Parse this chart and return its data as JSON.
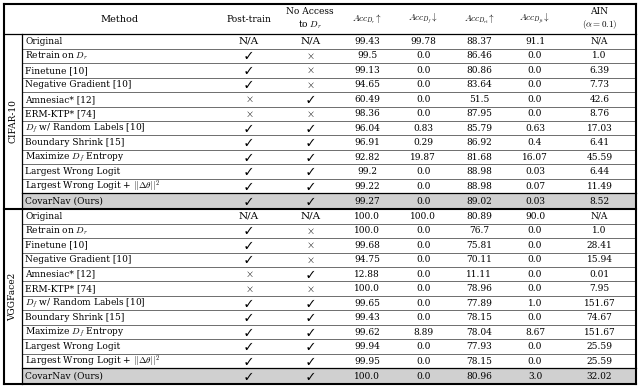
{
  "col_headers_line1": [
    "Method",
    "Post-train",
    "No Access",
    "$Acc_{D_r}\\!\\uparrow$",
    "$Acc_{D_f}\\!\\downarrow$",
    "$Acc_{D_{rt}}\\!\\uparrow$",
    "$Acc_{D_{ft}}\\!\\downarrow$",
    "AIN"
  ],
  "col_headers_line2": [
    "",
    "",
    "to $D_r$",
    "",
    "",
    "",
    "",
    "$(\\alpha=0.1)$"
  ],
  "cifar_rows": [
    [
      "Original",
      "N/A",
      "N/A",
      "99.43",
      "99.78",
      "88.37",
      "91.1",
      "N/A"
    ],
    [
      "Retrain on $D_r$",
      "\\checkmark",
      "\\times",
      "99.5",
      "0.0",
      "86.46",
      "0.0",
      "1.0"
    ],
    [
      "Finetune [10]",
      "\\checkmark",
      "\\times",
      "99.13",
      "0.0",
      "80.86",
      "0.0",
      "6.39"
    ],
    [
      "Negative Gradient [10]",
      "\\checkmark",
      "\\times",
      "94.65",
      "0.0",
      "83.64",
      "0.0",
      "7.73"
    ],
    [
      "Amnesiac* [12]",
      "\\times",
      "\\checkmark",
      "60.49",
      "0.0",
      "51.5",
      "0.0",
      "42.6"
    ],
    [
      "ERM-KTP* [74]",
      "\\times",
      "\\times",
      "98.36",
      "0.0",
      "87.95",
      "0.0",
      "8.76"
    ],
    [
      "$D_f$ w/ Random Labels [10]",
      "\\checkmark",
      "\\checkmark",
      "96.04",
      "0.83",
      "85.79",
      "0.63",
      "17.03"
    ],
    [
      "Boundary Shrink [15]",
      "\\checkmark",
      "\\checkmark",
      "96.91",
      "0.29",
      "86.92",
      "0.4",
      "6.41"
    ],
    [
      "Maximize $D_f$ Entropy",
      "\\checkmark",
      "\\checkmark",
      "92.82",
      "19.87",
      "81.68",
      "16.07",
      "45.59"
    ],
    [
      "Largest Wrong Logit",
      "\\checkmark",
      "\\checkmark",
      "99.2",
      "0.0",
      "88.98",
      "0.03",
      "6.44"
    ],
    [
      "Largest Wrong Logit + $||\\Delta\\theta||^2$",
      "\\checkmark",
      "\\checkmark",
      "99.22",
      "0.0",
      "88.98",
      "0.07",
      "11.49"
    ],
    [
      "CovarNav (Ours)",
      "\\checkmark",
      "\\checkmark",
      "99.27",
      "0.0",
      "89.02",
      "0.03",
      "8.52"
    ]
  ],
  "vgg_rows": [
    [
      "Original",
      "N/A",
      "N/A",
      "100.0",
      "100.0",
      "80.89",
      "90.0",
      "N/A"
    ],
    [
      "Retrain on $D_r$",
      "\\checkmark",
      "\\times",
      "100.0",
      "0.0",
      "76.7",
      "0.0",
      "1.0"
    ],
    [
      "Finetune [10]",
      "\\checkmark",
      "\\times",
      "99.68",
      "0.0",
      "75.81",
      "0.0",
      "28.41"
    ],
    [
      "Negative Gradient [10]",
      "\\checkmark",
      "\\times",
      "94.75",
      "0.0",
      "70.11",
      "0.0",
      "15.94"
    ],
    [
      "Amnesiac* [12]",
      "\\times",
      "\\checkmark",
      "12.88",
      "0.0",
      "11.11",
      "0.0",
      "0.01"
    ],
    [
      "ERM-KTP* [74]",
      "\\times",
      "\\times",
      "100.0",
      "0.0",
      "78.96",
      "0.0",
      "7.95"
    ],
    [
      "$D_f$ w/ Random Labels [10]",
      "\\checkmark",
      "\\checkmark",
      "99.65",
      "0.0",
      "77.89",
      "1.0",
      "151.67"
    ],
    [
      "Boundary Shrink [15]",
      "\\checkmark",
      "\\checkmark",
      "99.43",
      "0.0",
      "78.15",
      "0.0",
      "74.67"
    ],
    [
      "Maximize $D_f$ Entropy",
      "\\checkmark",
      "\\checkmark",
      "99.62",
      "8.89",
      "78.04",
      "8.67",
      "151.67"
    ],
    [
      "Largest Wrong Logit",
      "\\checkmark",
      "\\checkmark",
      "99.94",
      "0.0",
      "77.93",
      "0.0",
      "25.59"
    ],
    [
      "Largest Wrong Logit + $||\\Delta\\theta||^2$",
      "\\checkmark",
      "\\checkmark",
      "99.95",
      "0.0",
      "78.15",
      "0.0",
      "25.59"
    ],
    [
      "CovarNav (Ours)",
      "\\checkmark",
      "\\checkmark",
      "100.0",
      "0.0",
      "80.96",
      "3.0",
      "32.02"
    ]
  ],
  "cifar_label": "CIFAR-10",
  "vgg_label": "VGGFace2",
  "font_size": 6.5,
  "header_font_size": 7.0,
  "side_label_font_size": 6.5,
  "ours_bg": "#d0d0d0",
  "check_color": "#000000",
  "cross_color": "#000000"
}
